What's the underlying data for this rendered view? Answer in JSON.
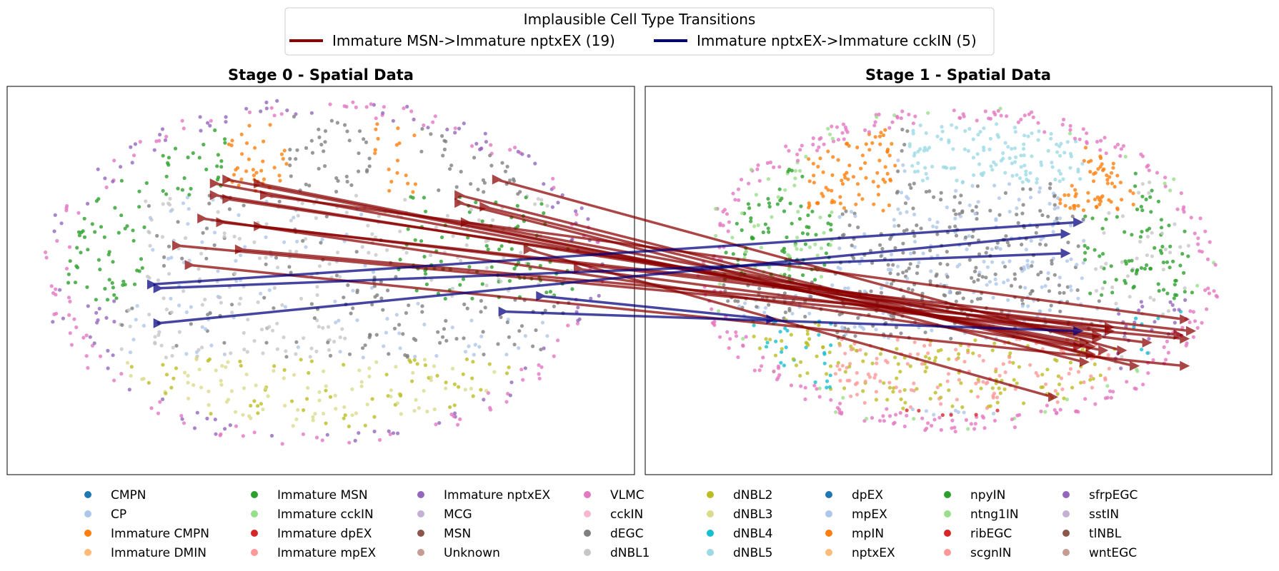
{
  "chart_data": {
    "type": "scatter",
    "legend_top": {
      "title": "Implausible Cell Type Transitions",
      "entries": [
        {
          "label": "Immature MSN->Immature nptxEX (19)",
          "color": "#8b0000"
        },
        {
          "label": "Immature nptxEX->Immature cckIN (5)",
          "color": "#00007f"
        }
      ]
    },
    "panels": [
      {
        "title": "Stage 0 - Spatial Data"
      },
      {
        "title": "Stage 1 - Spatial Data"
      }
    ],
    "cell_types": [
      {
        "label": "CMPN",
        "color": "#1f77b4"
      },
      {
        "label": "CP",
        "color": "#aec7e8"
      },
      {
        "label": "Immature CMPN",
        "color": "#ff7f0e"
      },
      {
        "label": "Immature DMIN",
        "color": "#ffbb78"
      },
      {
        "label": "Immature MSN",
        "color": "#2ca02c"
      },
      {
        "label": "Immature cckIN",
        "color": "#98df8a"
      },
      {
        "label": "Immature dpEX",
        "color": "#d62728"
      },
      {
        "label": "Immature mpEX",
        "color": "#ff9896"
      },
      {
        "label": "Immature nptxEX",
        "color": "#9467bd"
      },
      {
        "label": "MCG",
        "color": "#c5b0d5"
      },
      {
        "label": "MSN",
        "color": "#8c564b"
      },
      {
        "label": "Unknown",
        "color": "#c49c94"
      },
      {
        "label": "VLMC",
        "color": "#e377c2"
      },
      {
        "label": "cckIN",
        "color": "#f7b6d2"
      },
      {
        "label": "dEGC",
        "color": "#7f7f7f"
      },
      {
        "label": "dNBL1",
        "color": "#c7c7c7"
      },
      {
        "label": "dNBL2",
        "color": "#bcbd22"
      },
      {
        "label": "dNBL3",
        "color": "#dbdb8d"
      },
      {
        "label": "dNBL4",
        "color": "#17becf"
      },
      {
        "label": "dNBL5",
        "color": "#9edae5"
      },
      {
        "label": "dpEX",
        "color": "#1f77b4"
      },
      {
        "label": "mpEX",
        "color": "#aec7e8"
      },
      {
        "label": "mpIN",
        "color": "#ff7f0e"
      },
      {
        "label": "nptxEX",
        "color": "#ffbb78"
      },
      {
        "label": "npyIN",
        "color": "#2ca02c"
      },
      {
        "label": "ntng1IN",
        "color": "#98df8a"
      },
      {
        "label": "ribEGC",
        "color": "#d62728"
      },
      {
        "label": "scgnIN",
        "color": "#ff9896"
      },
      {
        "label": "sfrpEGC",
        "color": "#9467bd"
      },
      {
        "label": "sstIN",
        "color": "#c5b0d5"
      },
      {
        "label": "tlNBL",
        "color": "#8c564b"
      },
      {
        "label": "wntEGC",
        "color": "#c49c94"
      }
    ],
    "transitions": [
      {
        "series": 0,
        "from": [
          0.33,
          0.75
        ],
        "to": [
          0.7,
          0.34
        ]
      },
      {
        "series": 0,
        "from": [
          0.35,
          0.76
        ],
        "to": [
          0.71,
          0.33
        ]
      },
      {
        "series": 0,
        "from": [
          0.4,
          0.75
        ],
        "to": [
          0.73,
          0.32
        ]
      },
      {
        "series": 0,
        "from": [
          0.33,
          0.72
        ],
        "to": [
          0.72,
          0.36
        ]
      },
      {
        "series": 0,
        "from": [
          0.35,
          0.71
        ],
        "to": [
          0.74,
          0.37
        ]
      },
      {
        "series": 0,
        "from": [
          0.41,
          0.72
        ],
        "to": [
          0.86,
          0.4
        ]
      },
      {
        "series": 0,
        "from": [
          0.31,
          0.66
        ],
        "to": [
          0.69,
          0.33
        ]
      },
      {
        "series": 0,
        "from": [
          0.34,
          0.65
        ],
        "to": [
          0.87,
          0.37
        ]
      },
      {
        "series": 0,
        "from": [
          0.4,
          0.64
        ],
        "to": [
          0.85,
          0.36
        ]
      },
      {
        "series": 0,
        "from": [
          0.27,
          0.59
        ],
        "to": [
          0.86,
          0.35
        ]
      },
      {
        "series": 0,
        "from": [
          0.37,
          0.58
        ],
        "to": [
          0.74,
          0.38
        ]
      },
      {
        "series": 0,
        "from": [
          0.29,
          0.54
        ],
        "to": [
          0.86,
          0.28
        ]
      },
      {
        "series": 0,
        "from": [
          0.72,
          0.72
        ],
        "to": [
          0.71,
          0.31
        ]
      },
      {
        "series": 0,
        "from": [
          0.72,
          0.7
        ],
        "to": [
          0.7,
          0.29
        ]
      },
      {
        "series": 0,
        "from": [
          0.73,
          0.65
        ],
        "to": [
          0.72,
          0.35
        ]
      },
      {
        "series": 0,
        "from": [
          0.76,
          0.69
        ],
        "to": [
          0.78,
          0.28
        ]
      },
      {
        "series": 0,
        "from": [
          0.83,
          0.58
        ],
        "to": [
          0.65,
          0.2
        ]
      },
      {
        "series": 0,
        "from": [
          0.91,
          0.53
        ],
        "to": [
          0.8,
          0.34
        ]
      },
      {
        "series": 0,
        "from": [
          0.78,
          0.76
        ],
        "to": [
          0.76,
          0.32
        ]
      },
      {
        "series": 1,
        "from": [
          0.23,
          0.49
        ],
        "to": [
          0.69,
          0.65
        ]
      },
      {
        "series": 1,
        "from": [
          0.24,
          0.48
        ],
        "to": [
          0.67,
          0.57
        ]
      },
      {
        "series": 1,
        "from": [
          0.24,
          0.39
        ],
        "to": [
          0.67,
          0.62
        ]
      },
      {
        "series": 1,
        "from": [
          0.85,
          0.46
        ],
        "to": [
          0.2,
          0.4
        ]
      },
      {
        "series": 1,
        "from": [
          0.79,
          0.42
        ],
        "to": [
          0.69,
          0.37
        ]
      }
    ]
  }
}
